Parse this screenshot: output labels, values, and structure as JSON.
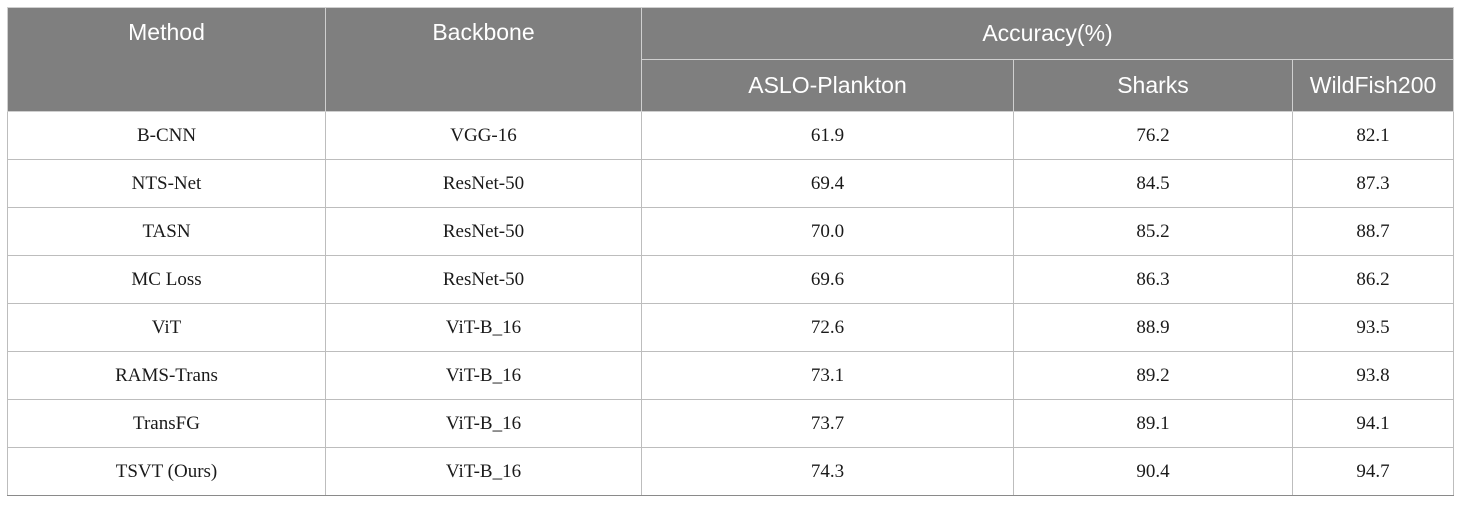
{
  "table": {
    "headers": {
      "method": "Method",
      "backbone": "Backbone",
      "accuracy": "Accuracy(%)",
      "datasets": [
        "ASLO-Plankton",
        "Sharks",
        "WildFish200"
      ]
    },
    "rows": [
      {
        "method": "B-CNN",
        "backbone": "VGG-16",
        "aslo": "61.9",
        "sharks": "76.2",
        "wildfish": "82.1"
      },
      {
        "method": "NTS-Net",
        "backbone": "ResNet-50",
        "aslo": "69.4",
        "sharks": "84.5",
        "wildfish": "87.3"
      },
      {
        "method": "TASN",
        "backbone": "ResNet-50",
        "aslo": "70.0",
        "sharks": "85.2",
        "wildfish": "88.7"
      },
      {
        "method": "MC Loss",
        "backbone": "ResNet-50",
        "aslo": "69.6",
        "sharks": "86.3",
        "wildfish": "86.2"
      },
      {
        "method": "ViT",
        "backbone": "ViT-B_16",
        "aslo": "72.6",
        "sharks": "88.9",
        "wildfish": "93.5"
      },
      {
        "method": "RAMS-Trans",
        "backbone": "ViT-B_16",
        "aslo": "73.1",
        "sharks": "89.2",
        "wildfish": "93.8"
      },
      {
        "method": "TransFG",
        "backbone": "ViT-B_16",
        "aslo": "73.7",
        "sharks": "89.1",
        "wildfish": "94.1"
      },
      {
        "method": "TSVT (Ours)",
        "backbone": "ViT-B_16",
        "aslo": "74.3",
        "sharks": "90.4",
        "wildfish": "94.7"
      }
    ]
  }
}
